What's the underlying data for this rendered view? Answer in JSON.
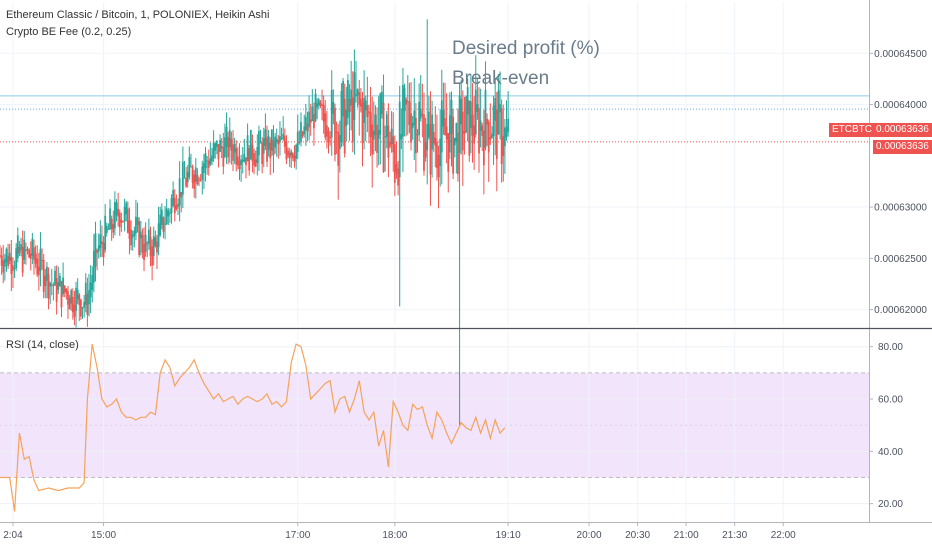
{
  "legend": {
    "symbol": "Ethereum Classic / Bitcoin, 1, POLONIEX, Heikin Ashi",
    "indicator": "Crypto BE Fee (0.2, 0.25)",
    "rsi": "RSI (14, close)"
  },
  "annotations": {
    "desired_profit": "Desired profit (%)",
    "break_even": "Break-even"
  },
  "price_tags": {
    "symbol_label": "ETCBTC",
    "last_price": "0.00063636",
    "second_price": "0.00063636"
  },
  "colors": {
    "up": "#26a69a",
    "down": "#ef5350",
    "rsi_line": "#f5a35b",
    "rsi_band": "#f1e4fb",
    "profit_line": "#8ecbe6",
    "breakeven_line": "#6ba6df",
    "last_price_line": "#ef5350"
  },
  "chart_data": [
    {
      "type": "candlestick",
      "style": "Heikin Ashi",
      "ylim": [
        0.0006185,
        0.00065
      ],
      "y_ticks": [
        "0.00064500",
        "0.00064000",
        "0.00063000",
        "0.00062500",
        "0.00062000"
      ],
      "y_tick_values": [
        0.000645,
        0.00064,
        0.00063,
        0.000625,
        0.00062
      ],
      "x_ticks": [
        "2:04",
        "15:00",
        "17:00",
        "18:00",
        "19:10",
        "20:00",
        "20:30",
        "21:00",
        "21:30",
        "22:00"
      ],
      "x_tick_minutes": [
        844,
        900,
        1020,
        1080,
        1150,
        1200,
        1230,
        1260,
        1290,
        1320
      ],
      "xlim_minutes": [
        836,
        1373
      ],
      "desired_profit_level": 0.00064085,
      "break_even_level": 0.00063955,
      "last_price": 0.00063636,
      "waypoints_minutes": [
        836,
        855,
        870,
        885,
        890,
        895,
        910,
        920,
        925,
        930,
        945,
        960,
        975,
        990,
        1005,
        1015,
        1020,
        1030,
        1035,
        1045,
        1055,
        1065,
        1075,
        1080,
        1085,
        1090,
        1095,
        1100,
        1110,
        1118,
        1125,
        1135,
        1140,
        1145,
        1150
      ],
      "waypoints_close": [
        0.0006253,
        0.0006253,
        0.0006222,
        0.000621,
        0.000621,
        0.0006255,
        0.0006297,
        0.0006275,
        0.0006262,
        0.0006258,
        0.0006318,
        0.0006342,
        0.000636,
        0.0006355,
        0.0006358,
        0.0006361,
        0.000636,
        0.0006393,
        0.0006385,
        0.000638,
        0.0006397,
        0.0006385,
        0.000637,
        0.0006345,
        0.000638,
        0.0006395,
        0.000639,
        0.0006362,
        0.000637,
        0.0006366,
        0.0006382,
        0.000638,
        0.0006388,
        0.0006372,
        0.0006364
      ]
    },
    {
      "type": "line",
      "name": "RSI (14, close)",
      "ylim": [
        13,
        86
      ],
      "y_ticks": [
        "80.00",
        "60.00",
        "40.00",
        "20.00"
      ],
      "y_tick_values": [
        80,
        60,
        40,
        20
      ],
      "band": [
        30,
        70
      ],
      "mid": 50,
      "x_minutes": [
        836,
        842,
        845,
        848,
        851,
        854,
        857,
        860,
        866,
        872,
        878,
        885,
        888,
        890,
        893,
        896,
        899,
        902,
        905,
        908,
        911,
        914,
        917,
        920,
        923,
        926,
        929,
        932,
        935,
        938,
        941,
        944,
        947,
        950,
        953,
        956,
        959,
        962,
        965,
        968,
        971,
        974,
        977,
        980,
        983,
        986,
        989,
        992,
        995,
        998,
        1001,
        1004,
        1007,
        1010,
        1013,
        1016,
        1019,
        1022,
        1025,
        1028,
        1031,
        1034,
        1037,
        1040,
        1043,
        1046,
        1049,
        1052,
        1055,
        1058,
        1061,
        1064,
        1067,
        1070,
        1073,
        1076,
        1079,
        1082,
        1085,
        1088,
        1091,
        1094,
        1097,
        1100,
        1103,
        1106,
        1109,
        1112,
        1115,
        1118,
        1121,
        1124,
        1127,
        1130,
        1133,
        1136,
        1139,
        1142,
        1145,
        1148
      ],
      "y": [
        30,
        30,
        17,
        47,
        37,
        38,
        29,
        25,
        26,
        25,
        26,
        26,
        28,
        60,
        81,
        72,
        60,
        57,
        58,
        60,
        55,
        53,
        53,
        52,
        53,
        53,
        55,
        54,
        70,
        75,
        72,
        65,
        68,
        70,
        72,
        75,
        70,
        66,
        63,
        60,
        62,
        59,
        60,
        61,
        58,
        60,
        61,
        60,
        59,
        60,
        62,
        58,
        59,
        57,
        59,
        74,
        81,
        80,
        73,
        60,
        62,
        64,
        66,
        67,
        55,
        60,
        61,
        55,
        60,
        67,
        55,
        52,
        55,
        42,
        48,
        34,
        59,
        55,
        50,
        48,
        58,
        56,
        57,
        50,
        45,
        55,
        52,
        47,
        43,
        47,
        51,
        49,
        48,
        53,
        47,
        52,
        45,
        52,
        47,
        49
      ]
    }
  ]
}
